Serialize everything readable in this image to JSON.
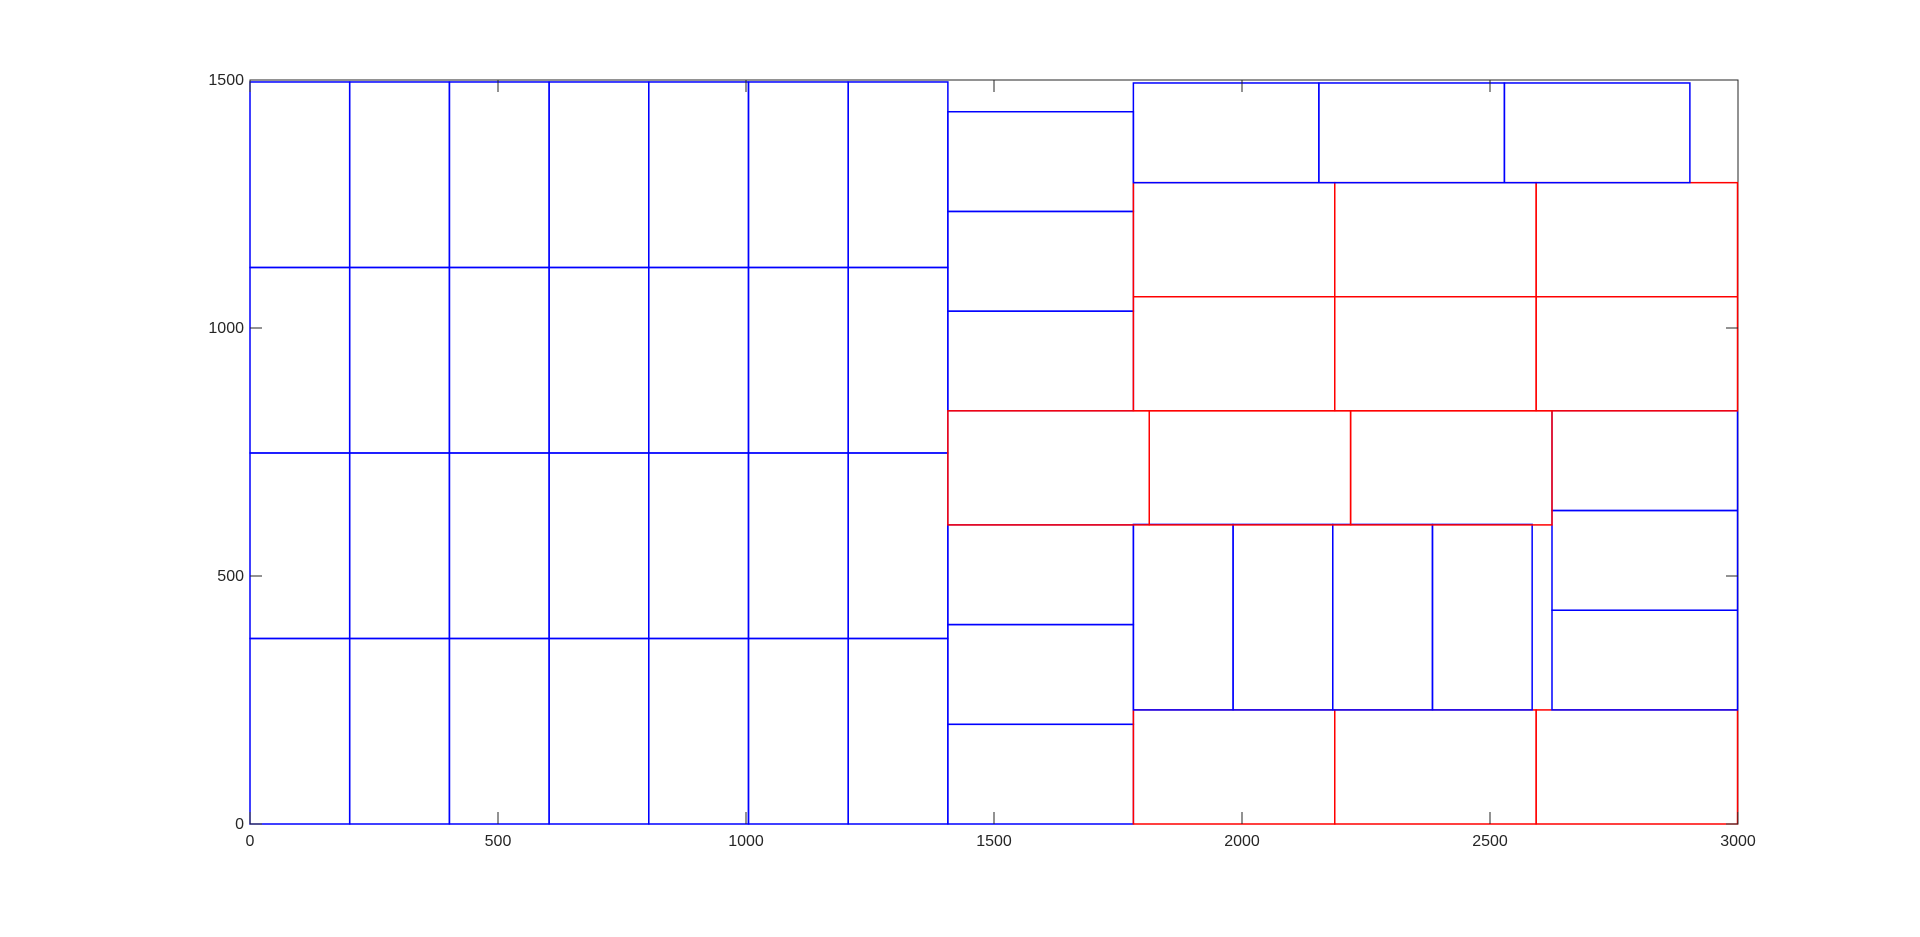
{
  "chart_data": {
    "type": "rectangle-packing",
    "title": "",
    "xlabel": "",
    "ylabel": "",
    "xlim": [
      0,
      3000
    ],
    "ylim": [
      0,
      1500
    ],
    "xticks": [
      0,
      500,
      1000,
      1500,
      2000,
      2500,
      3000
    ],
    "yticks": [
      0,
      500,
      1000,
      1500
    ],
    "xtick_labels": [
      "0",
      "500",
      "1000",
      "1500",
      "2000",
      "2500",
      "3000"
    ],
    "ytick_labels": [
      "0",
      "500",
      "1000",
      "1500"
    ],
    "grid": false,
    "colors": {
      "blue": "#0000ff",
      "red": "#ff0000",
      "axes": "#262626",
      "box": "#262626"
    },
    "rects": [
      {
        "x": 0,
        "y": 0,
        "w": 201,
        "h": 374,
        "color": "blue"
      },
      {
        "x": 201,
        "y": 0,
        "w": 201,
        "h": 374,
        "color": "blue"
      },
      {
        "x": 402,
        "y": 0,
        "w": 201,
        "h": 374,
        "color": "blue"
      },
      {
        "x": 603,
        "y": 0,
        "w": 201,
        "h": 374,
        "color": "blue"
      },
      {
        "x": 804,
        "y": 0,
        "w": 201,
        "h": 374,
        "color": "blue"
      },
      {
        "x": 1005,
        "y": 0,
        "w": 201,
        "h": 374,
        "color": "blue"
      },
      {
        "x": 1206,
        "y": 0,
        "w": 201,
        "h": 374,
        "color": "blue"
      },
      {
        "x": 0,
        "y": 374,
        "w": 201,
        "h": 374,
        "color": "blue"
      },
      {
        "x": 201,
        "y": 374,
        "w": 201,
        "h": 374,
        "color": "blue"
      },
      {
        "x": 402,
        "y": 374,
        "w": 201,
        "h": 374,
        "color": "blue"
      },
      {
        "x": 603,
        "y": 374,
        "w": 201,
        "h": 374,
        "color": "blue"
      },
      {
        "x": 804,
        "y": 374,
        "w": 201,
        "h": 374,
        "color": "blue"
      },
      {
        "x": 1005,
        "y": 374,
        "w": 201,
        "h": 374,
        "color": "blue"
      },
      {
        "x": 1206,
        "y": 374,
        "w": 201,
        "h": 374,
        "color": "blue"
      },
      {
        "x": 0,
        "y": 748,
        "w": 201,
        "h": 374,
        "color": "blue"
      },
      {
        "x": 201,
        "y": 748,
        "w": 201,
        "h": 374,
        "color": "blue"
      },
      {
        "x": 402,
        "y": 748,
        "w": 201,
        "h": 374,
        "color": "blue"
      },
      {
        "x": 603,
        "y": 748,
        "w": 201,
        "h": 374,
        "color": "blue"
      },
      {
        "x": 804,
        "y": 748,
        "w": 201,
        "h": 374,
        "color": "blue"
      },
      {
        "x": 1005,
        "y": 748,
        "w": 201,
        "h": 374,
        "color": "blue"
      },
      {
        "x": 1206,
        "y": 748,
        "w": 201,
        "h": 374,
        "color": "blue"
      },
      {
        "x": 0,
        "y": 1122,
        "w": 201,
        "h": 374,
        "color": "blue"
      },
      {
        "x": 201,
        "y": 1122,
        "w": 201,
        "h": 374,
        "color": "blue"
      },
      {
        "x": 402,
        "y": 1122,
        "w": 201,
        "h": 374,
        "color": "blue"
      },
      {
        "x": 603,
        "y": 1122,
        "w": 201,
        "h": 374,
        "color": "blue"
      },
      {
        "x": 804,
        "y": 1122,
        "w": 201,
        "h": 374,
        "color": "blue"
      },
      {
        "x": 1005,
        "y": 1122,
        "w": 201,
        "h": 374,
        "color": "blue"
      },
      {
        "x": 1206,
        "y": 1122,
        "w": 201,
        "h": 374,
        "color": "blue"
      },
      {
        "x": 1407,
        "y": 0,
        "w": 374,
        "h": 201,
        "color": "blue"
      },
      {
        "x": 1407,
        "y": 201,
        "w": 374,
        "h": 201,
        "color": "blue"
      },
      {
        "x": 1407,
        "y": 402,
        "w": 374,
        "h": 201,
        "color": "blue"
      },
      {
        "x": 1407,
        "y": 833,
        "w": 374,
        "h": 201,
        "color": "blue"
      },
      {
        "x": 1407,
        "y": 1034,
        "w": 374,
        "h": 201,
        "color": "blue"
      },
      {
        "x": 1407,
        "y": 1235,
        "w": 374,
        "h": 201,
        "color": "blue"
      },
      {
        "x": 1781,
        "y": 0,
        "w": 406,
        "h": 230,
        "color": "red"
      },
      {
        "x": 2187,
        "y": 0,
        "w": 406,
        "h": 230,
        "color": "red"
      },
      {
        "x": 2593,
        "y": 0,
        "w": 406,
        "h": 230,
        "color": "red"
      },
      {
        "x": 1781,
        "y": 230,
        "w": 201,
        "h": 374,
        "color": "blue"
      },
      {
        "x": 1982,
        "y": 230,
        "w": 201,
        "h": 374,
        "color": "blue"
      },
      {
        "x": 2183,
        "y": 230,
        "w": 201,
        "h": 374,
        "color": "blue"
      },
      {
        "x": 2384,
        "y": 230,
        "w": 201,
        "h": 374,
        "color": "blue"
      },
      {
        "x": 2625,
        "y": 230,
        "w": 374,
        "h": 201,
        "color": "blue"
      },
      {
        "x": 2625,
        "y": 431,
        "w": 374,
        "h": 201,
        "color": "blue"
      },
      {
        "x": 2625,
        "y": 632,
        "w": 374,
        "h": 201,
        "color": "blue"
      },
      {
        "x": 1407,
        "y": 603,
        "w": 406,
        "h": 230,
        "color": "red"
      },
      {
        "x": 1813,
        "y": 603,
        "w": 406,
        "h": 230,
        "color": "red"
      },
      {
        "x": 2219,
        "y": 603,
        "w": 406,
        "h": 230,
        "color": "red"
      },
      {
        "x": 1781,
        "y": 833,
        "w": 406,
        "h": 230,
        "color": "red"
      },
      {
        "x": 2187,
        "y": 833,
        "w": 406,
        "h": 230,
        "color": "red"
      },
      {
        "x": 2593,
        "y": 833,
        "w": 406,
        "h": 230,
        "color": "red"
      },
      {
        "x": 1781,
        "y": 1063,
        "w": 406,
        "h": 230,
        "color": "red"
      },
      {
        "x": 2187,
        "y": 1063,
        "w": 406,
        "h": 230,
        "color": "red"
      },
      {
        "x": 2593,
        "y": 1063,
        "w": 406,
        "h": 230,
        "color": "red"
      },
      {
        "x": 1781,
        "y": 1293,
        "w": 374,
        "h": 201,
        "color": "blue"
      },
      {
        "x": 2155,
        "y": 1293,
        "w": 374,
        "h": 201,
        "color": "blue"
      },
      {
        "x": 2529,
        "y": 1293,
        "w": 374,
        "h": 201,
        "color": "blue"
      }
    ]
  }
}
